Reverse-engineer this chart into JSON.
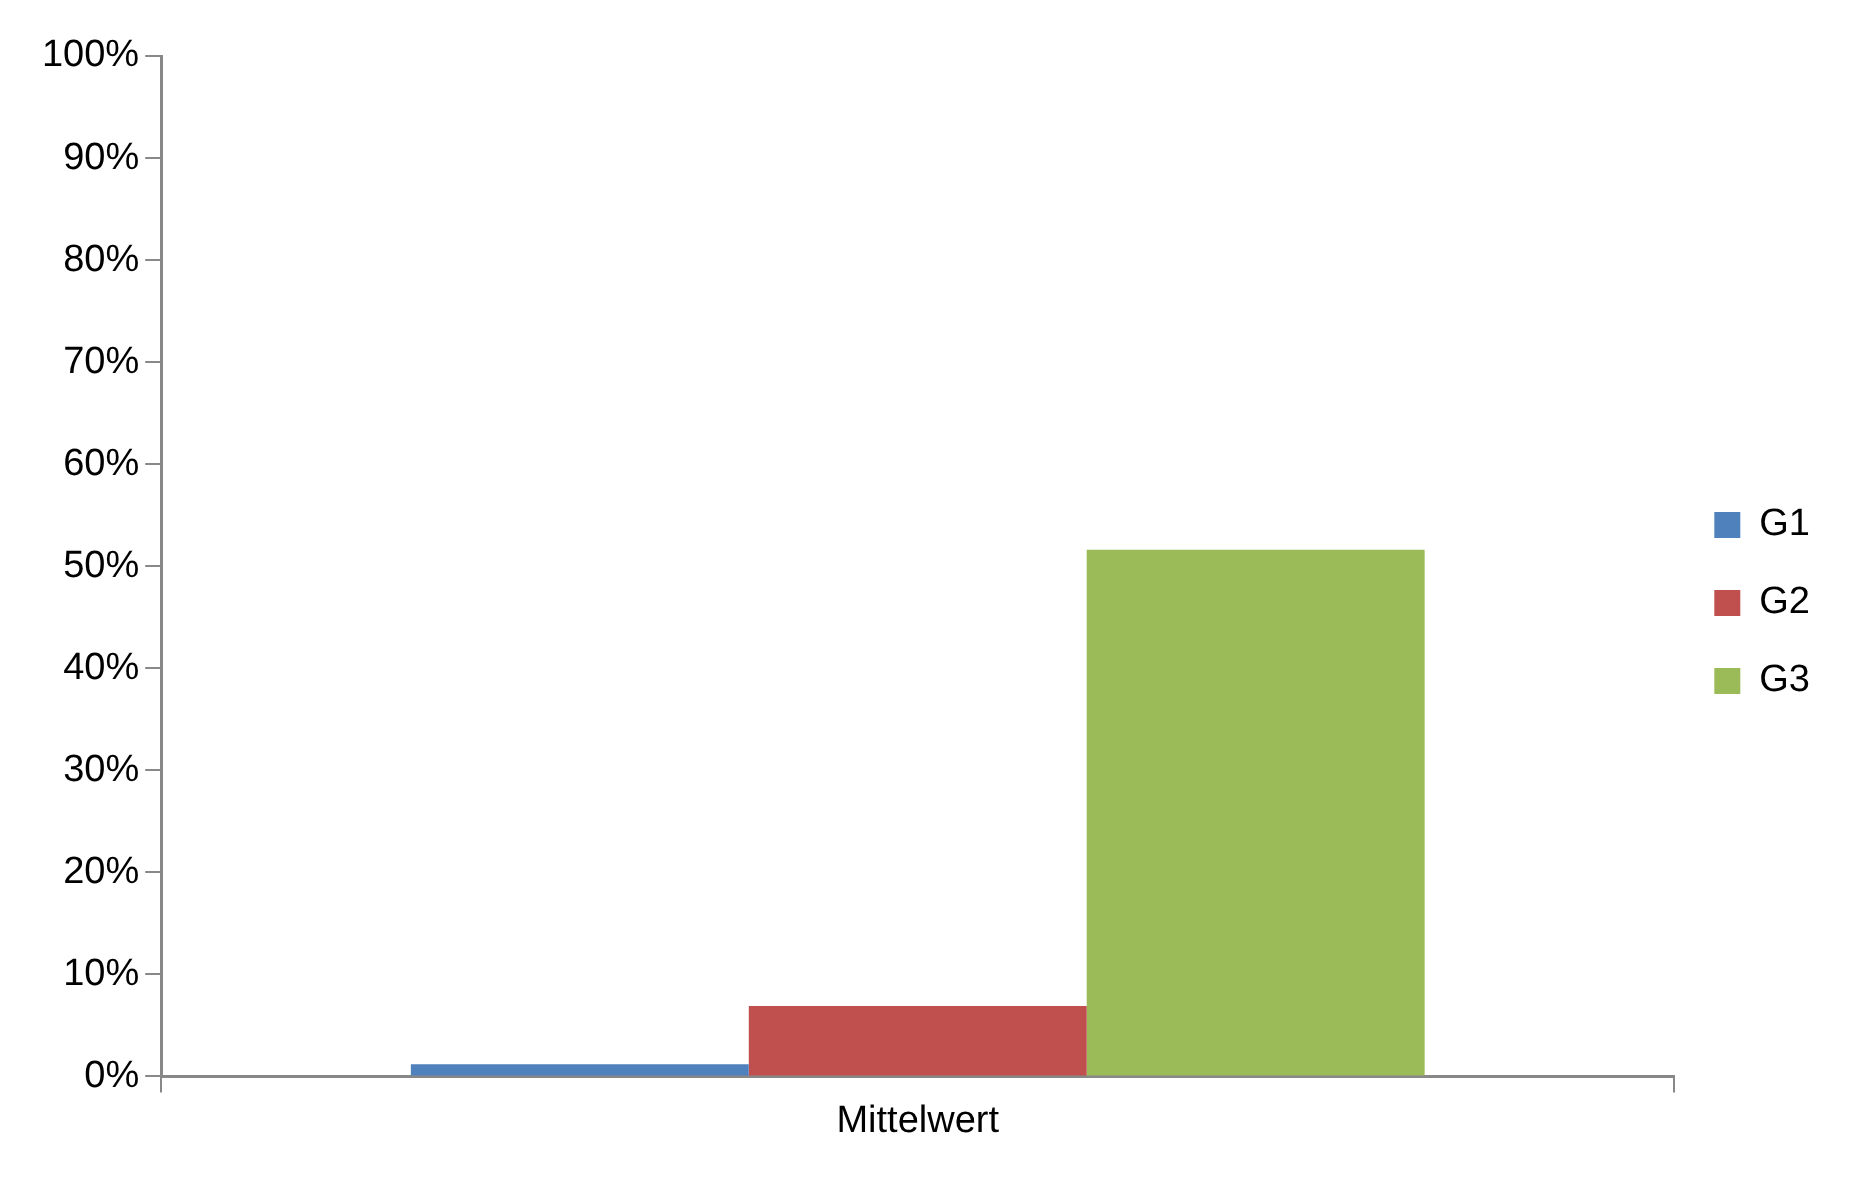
{
  "chart_data": {
    "type": "bar",
    "categories": [
      "Mittelwert"
    ],
    "series": [
      {
        "name": "G1",
        "color": "#4f81bd",
        "values": [
          1.2
        ]
      },
      {
        "name": "G2",
        "color": "#c0504d",
        "values": [
          6.9
        ]
      },
      {
        "name": "G3",
        "color": "#9bbb59",
        "values": [
          51.6
        ]
      }
    ],
    "ylim": [
      0,
      100
    ],
    "yticks": [
      {
        "value": 0,
        "label": "0%"
      },
      {
        "value": 10,
        "label": "10%"
      },
      {
        "value": 20,
        "label": "20%"
      },
      {
        "value": 30,
        "label": "30%"
      },
      {
        "value": 40,
        "label": "40%"
      },
      {
        "value": 50,
        "label": "50%"
      },
      {
        "value": 60,
        "label": "60%"
      },
      {
        "value": 70,
        "label": "70%"
      },
      {
        "value": 80,
        "label": "80%"
      },
      {
        "value": 90,
        "label": "90%"
      },
      {
        "value": 100,
        "label": "100%"
      }
    ],
    "grid": false,
    "legend": "right"
  }
}
